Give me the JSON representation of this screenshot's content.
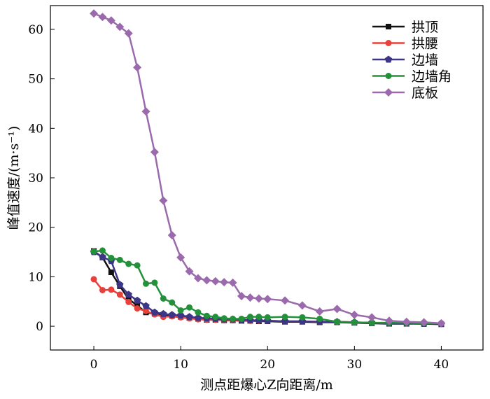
{
  "chart_data": {
    "type": "line",
    "title": "",
    "xlabel": "测点距爆心Z向距离/m",
    "ylabel": "峰值速度/(m·s⁻¹)",
    "xlim": [
      -5,
      44.8
    ],
    "ylim": [
      -4.8,
      64.8
    ],
    "xticks": [
      0,
      10,
      20,
      30,
      40
    ],
    "yticks": [
      0,
      10,
      20,
      30,
      40,
      50,
      60
    ],
    "grid": false,
    "legend_position": "top-right",
    "x": [
      0,
      1,
      2,
      3,
      4,
      5,
      6,
      7,
      8,
      9,
      10,
      11,
      12,
      13,
      14,
      15,
      16,
      17,
      18,
      19,
      20,
      22,
      24,
      26,
      28,
      30,
      32,
      34,
      36,
      38,
      40
    ],
    "series": [
      {
        "name": "拱顶",
        "color": "#111111",
        "marker": "square",
        "values": [
          15.2,
          13.9,
          10.9,
          8.1,
          5.5,
          4.2,
          2.8,
          2.5,
          2.3,
          2.1,
          1.9,
          1.7,
          1.5,
          1.3,
          1.3,
          1.2,
          1.2,
          1.1,
          1.1,
          1.0,
          1.0,
          0.9,
          0.9,
          0.8,
          0.8,
          0.7,
          0.6,
          0.5,
          0.5,
          0.5,
          0.4
        ]
      },
      {
        "name": "拱腰",
        "color": "#e8403a",
        "marker": "circle",
        "values": [
          9.5,
          7.3,
          7.4,
          6.4,
          4.9,
          3.6,
          3.1,
          2.4,
          1.9,
          2.0,
          1.8,
          1.6,
          1.4,
          1.3,
          1.3,
          1.2,
          1.2,
          1.2,
          1.1,
          1.1,
          1.1,
          1.0,
          1.0,
          0.9,
          0.9,
          0.8,
          0.7,
          0.6,
          0.6,
          0.5,
          0.5
        ]
      },
      {
        "name": "边墙",
        "color": "#3d3585",
        "marker": "pentagon",
        "values": [
          15.0,
          14.0,
          13.2,
          8.4,
          6.4,
          5.2,
          4.1,
          2.8,
          2.5,
          2.3,
          2.2,
          1.9,
          1.7,
          1.6,
          1.5,
          1.4,
          1.4,
          1.3,
          1.2,
          1.2,
          1.1,
          1.0,
          1.0,
          0.9,
          0.9,
          0.8,
          0.7,
          0.6,
          0.6,
          0.5,
          0.5
        ]
      },
      {
        "name": "边墙角",
        "color": "#23903a",
        "marker": "circle",
        "values": [
          15.1,
          15.3,
          13.8,
          13.4,
          12.6,
          12.3,
          8.6,
          8.8,
          5.6,
          4.8,
          3.2,
          3.8,
          2.8,
          2.1,
          1.9,
          1.6,
          1.5,
          1.5,
          1.9,
          1.9,
          1.8,
          1.9,
          1.8,
          1.5,
          0.9,
          0.8,
          0.7,
          0.7,
          0.7,
          0.6,
          0.6
        ]
      },
      {
        "name": "底板",
        "color": "#9a6aac",
        "marker": "diamond",
        "values": [
          63.2,
          62.5,
          61.8,
          60.5,
          59.2,
          52.3,
          43.4,
          35.2,
          25.4,
          18.4,
          13.9,
          11.1,
          9.7,
          9.3,
          9.1,
          8.9,
          8.8,
          6.1,
          5.8,
          5.6,
          5.5,
          5.2,
          4.2,
          3.0,
          3.5,
          2.3,
          1.8,
          1.1,
          0.9,
          0.8,
          0.6
        ]
      }
    ]
  }
}
